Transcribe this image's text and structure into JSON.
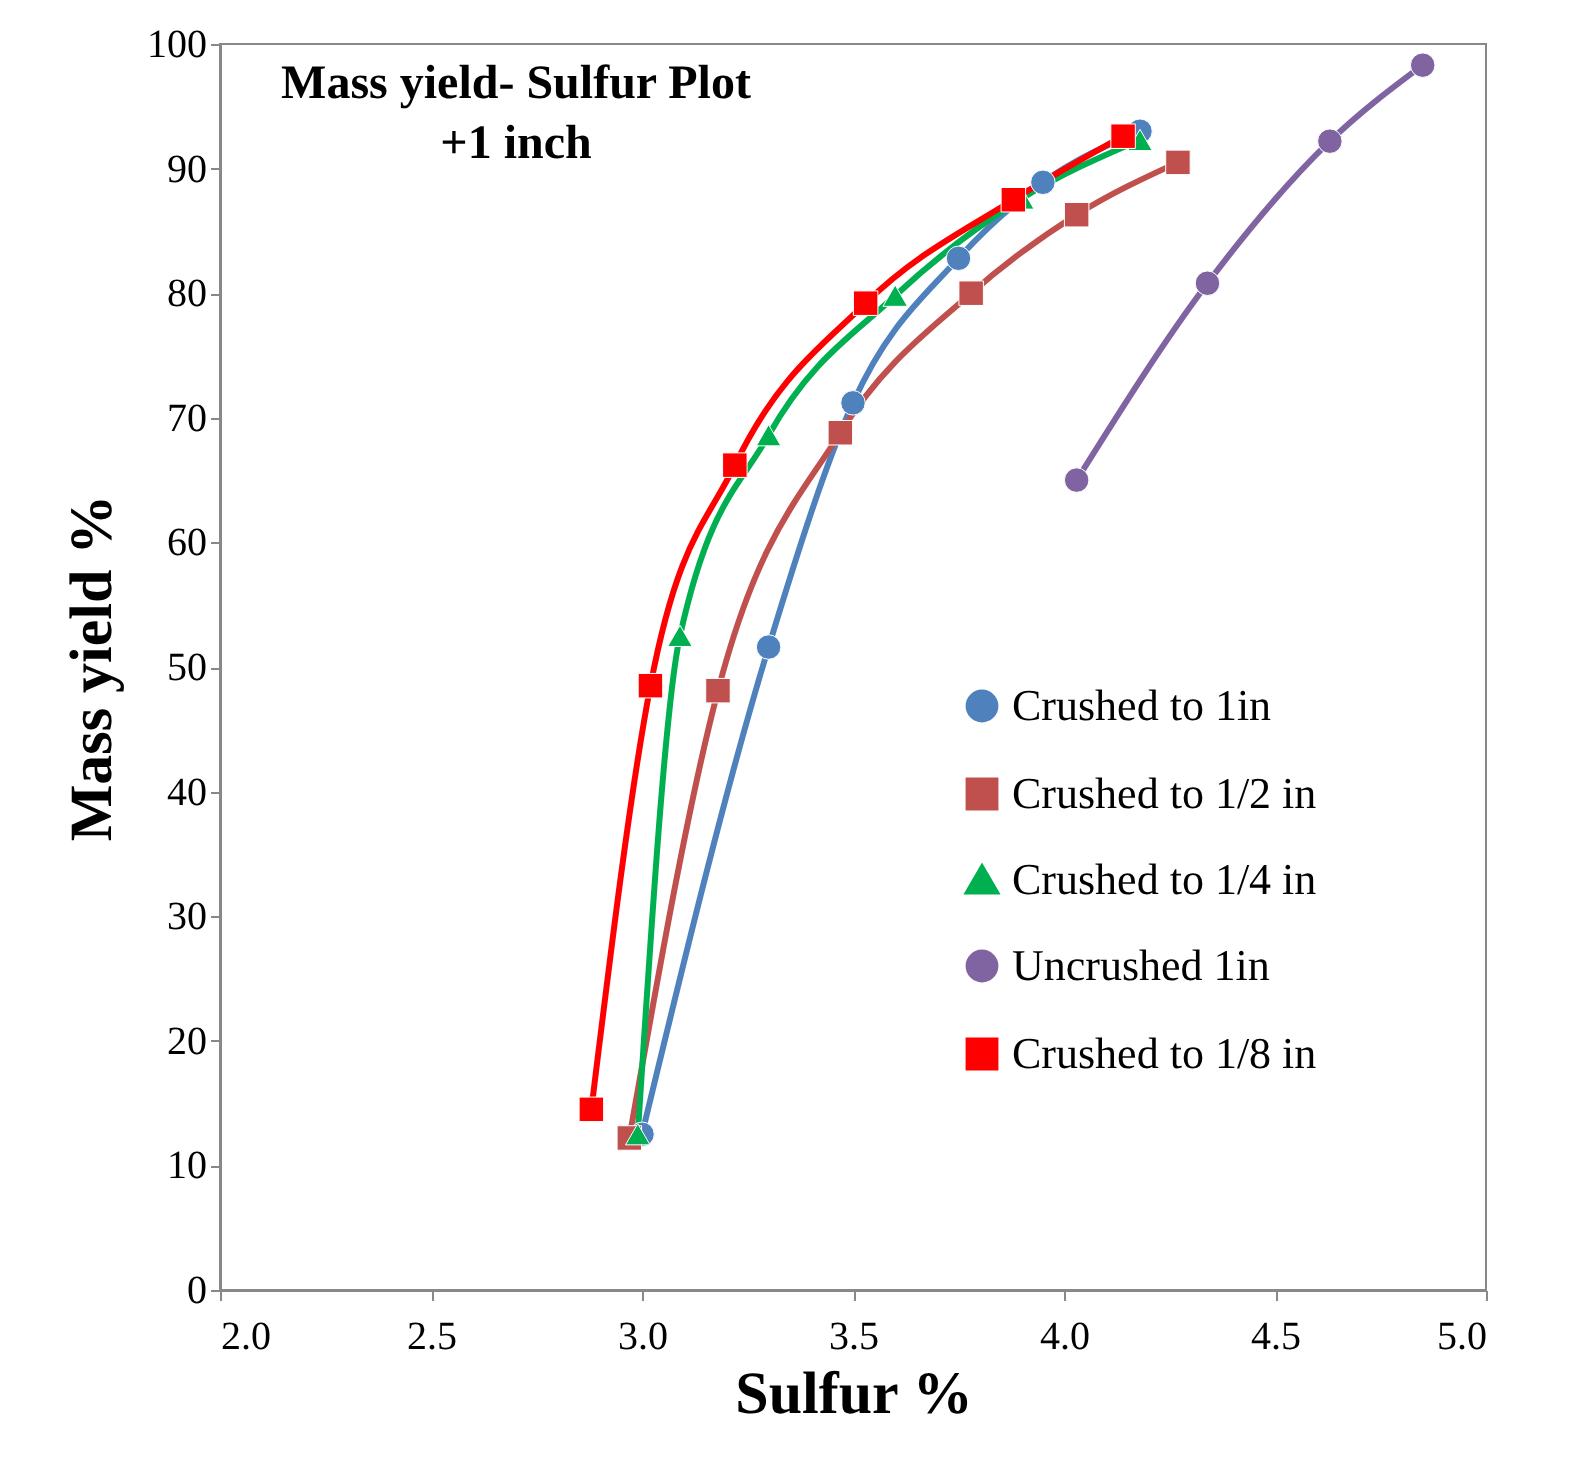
{
  "chart_data": {
    "type": "line",
    "title": [
      "Mass yield- Sulfur Plot",
      "+1 inch"
    ],
    "xlabel": "Sulfur %",
    "ylabel": "Mass yield %",
    "xlim": [
      2.0,
      5.0
    ],
    "ylim": [
      0,
      100
    ],
    "xticks": [
      {
        "value": 2.0,
        "label": "2.0"
      },
      {
        "value": 2.5,
        "label": "2.5"
      },
      {
        "value": 3.0,
        "label": "3.0"
      },
      {
        "value": 3.5,
        "label": "3.5"
      },
      {
        "value": 4.0,
        "label": "4.0"
      },
      {
        "value": 4.5,
        "label": "4.5"
      },
      {
        "value": 5.0,
        "label": "5.0"
      }
    ],
    "yticks": [
      0,
      10,
      20,
      30,
      40,
      50,
      60,
      70,
      80,
      90,
      100
    ],
    "grid": false,
    "legend": "right",
    "line_style": "solid",
    "series": [
      {
        "name": "Crushed to 1in",
        "color": "#4f81bd",
        "marker": "circle",
        "x": [
          3.0,
          3.3,
          3.5,
          3.75,
          3.95,
          4.18
        ],
        "values": [
          12.5,
          51.6,
          71.2,
          82.8,
          88.9,
          93
        ]
      },
      {
        "name": "Crushed to 1/2 in",
        "color": "#c0504d",
        "marker": "square",
        "x": [
          2.97,
          3.18,
          3.47,
          3.78,
          4.03,
          4.27
        ],
        "values": [
          12.2,
          48.1,
          68.8,
          80,
          86.3,
          90.5
        ]
      },
      {
        "name": "Crushed to 1/4 in",
        "color": "#00b050",
        "marker": "triangle",
        "x": [
          2.99,
          3.09,
          3.3,
          3.6,
          3.9,
          4.18
        ],
        "values": [
          12.5,
          52.5,
          68.6,
          79.8,
          87.6,
          92.3
        ]
      },
      {
        "name": "Uncrushed 1in",
        "color": "#8064a2",
        "marker": "circle",
        "x": [
          4.03,
          4.34,
          4.63,
          4.85
        ],
        "values": [
          65,
          80.8,
          92.2,
          98.3
        ]
      },
      {
        "name": "Crushed to 1/8 in",
        "color": "#ff0000",
        "marker": "square",
        "x": [
          2.88,
          3.02,
          3.22,
          3.53,
          3.88,
          4.14
        ],
        "values": [
          14.5,
          48.5,
          66.2,
          79.2,
          87.5,
          92.6
        ]
      }
    ]
  }
}
